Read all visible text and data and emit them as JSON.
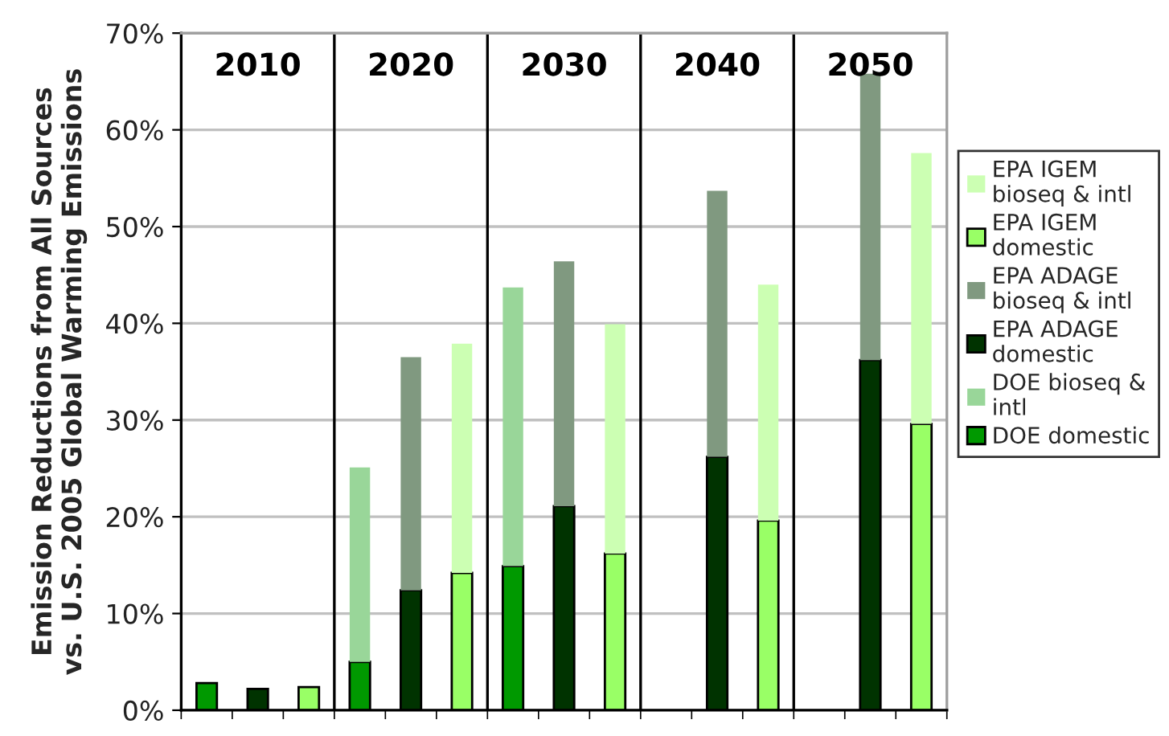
{
  "chart_data": {
    "type": "bar",
    "stacked": true,
    "ylabel": "Emission Reductions from All Sources\nvs. U.S. 2005 Global Warming Emissions",
    "categories": [
      null,
      null,
      null,
      null,
      null,
      null,
      null,
      null,
      null,
      null,
      null,
      null,
      null,
      null,
      null
    ],
    "ylim": [
      0,
      70
    ],
    "yticks": [
      {
        "value": 0,
        "label": "0%"
      },
      {
        "value": 10,
        "label": "10%"
      },
      {
        "value": 20,
        "label": "20%"
      },
      {
        "value": 30,
        "label": "30%"
      },
      {
        "value": 40,
        "label": "40%"
      },
      {
        "value": 50,
        "label": "50%"
      },
      {
        "value": 60,
        "label": "60%"
      },
      {
        "value": 70,
        "label": "70%"
      }
    ],
    "grid": "y",
    "legend": "right",
    "series": [
      {
        "name": "DOE domestic",
        "color": "#009900",
        "values": [
          2.8,
          null,
          null,
          5.0,
          null,
          null,
          14.9,
          null,
          null,
          null,
          null,
          null,
          null,
          null,
          null
        ]
      },
      {
        "name": "DOE bioseq & intl",
        "color": "#99d699",
        "values": [
          null,
          null,
          null,
          20.1,
          null,
          null,
          28.8,
          null,
          null,
          null,
          null,
          null,
          null,
          null,
          null
        ]
      },
      {
        "name": "EPA ADAGE domestic",
        "color": "#003300",
        "values": [
          null,
          2.2,
          null,
          null,
          12.4,
          null,
          null,
          21.1,
          null,
          null,
          26.2,
          null,
          null,
          36.2,
          null
        ]
      },
      {
        "name": "EPA ADAGE bioseq & intl",
        "color": "#809980",
        "values": [
          null,
          null,
          null,
          null,
          24.1,
          null,
          null,
          25.3,
          null,
          null,
          27.5,
          null,
          null,
          29.6,
          null
        ]
      },
      {
        "name": "EPA IGEM domestic",
        "color": "#99ff66",
        "values": [
          null,
          null,
          2.4,
          null,
          null,
          14.2,
          null,
          null,
          16.2,
          null,
          null,
          19.6,
          null,
          null,
          29.6
        ]
      },
      {
        "name": "EPA IGEM bioseq & intl",
        "color": "#ccffb3",
        "values": [
          null,
          null,
          null,
          null,
          null,
          23.7,
          null,
          null,
          23.7,
          null,
          null,
          24.4,
          null,
          null,
          28.0
        ]
      }
    ],
    "annotations": [
      "2010",
      "2020",
      "2030",
      "2040",
      "2050"
    ]
  }
}
